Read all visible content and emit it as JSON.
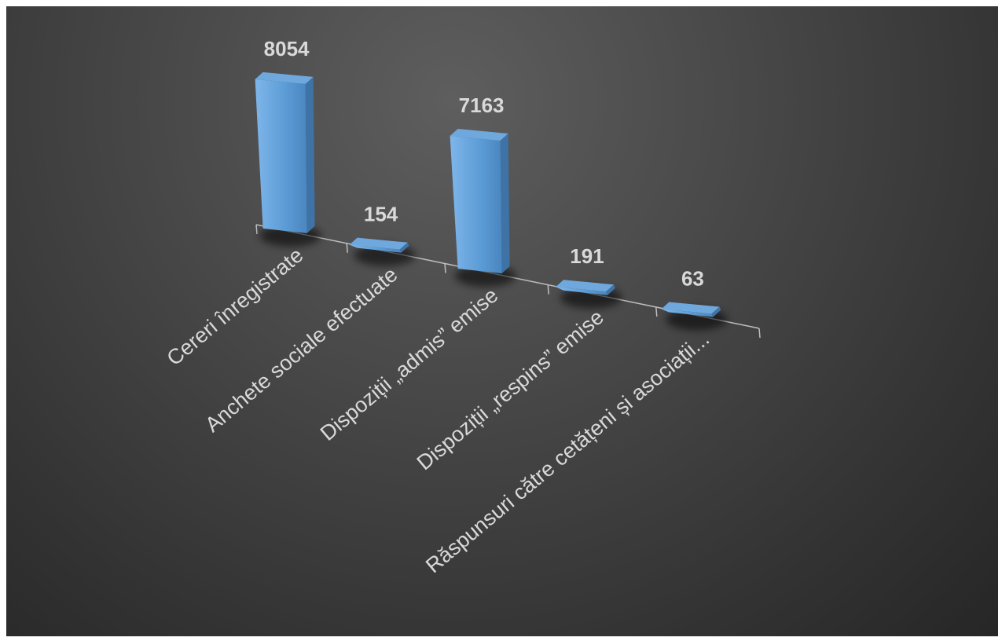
{
  "chart_data": {
    "type": "bar",
    "style": "3d-column",
    "categories": [
      "Cereri înregistrate",
      "Anchete sociale efectuate",
      "Dispoziții „admis” emise",
      "Dispoziții „respins” emise",
      "Răspunsuri către cetățeni și asociații..."
    ],
    "values": [
      8054,
      154,
      7163,
      191,
      63
    ],
    "data_labels": [
      "8054",
      "154",
      "7163",
      "191",
      "63"
    ],
    "title": "",
    "xlabel": "",
    "ylabel": "",
    "grid": false,
    "legend": "none",
    "colors": {
      "bar": "#5b9bd5",
      "background": "#404040",
      "text": "#d9d9d9",
      "axis": "#bfbfbf"
    }
  }
}
